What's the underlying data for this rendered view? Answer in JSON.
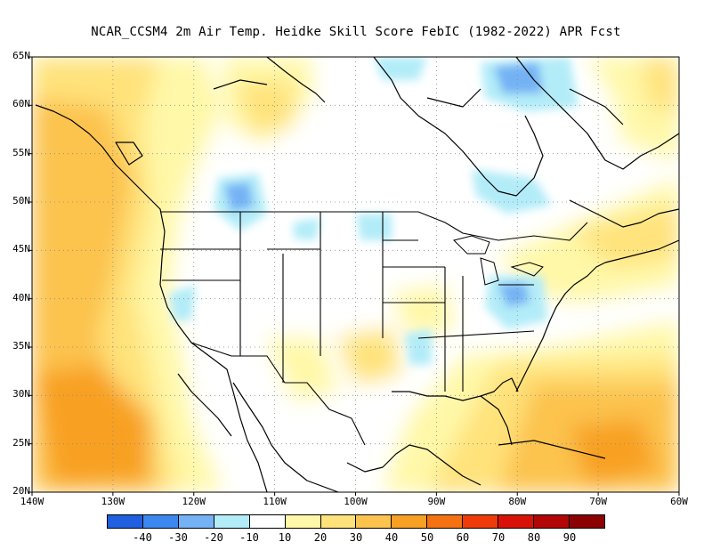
{
  "title": "NCAR_CCSM4  2m Air Temp. Heidke Skill Score FebIC (1982-2022) APR Fcst",
  "lat_labels": [
    {
      "value": 65,
      "label": "65N"
    },
    {
      "value": 60,
      "label": "60N"
    },
    {
      "value": 55,
      "label": "55N"
    },
    {
      "value": 50,
      "label": "50N"
    },
    {
      "value": 45,
      "label": "45N"
    },
    {
      "value": 40,
      "label": "40N"
    },
    {
      "value": 35,
      "label": "35N"
    },
    {
      "value": 30,
      "label": "30N"
    },
    {
      "value": 25,
      "label": "25N"
    },
    {
      "value": 20,
      "label": "20N"
    }
  ],
  "lon_labels": [
    {
      "value": -140,
      "label": "140W"
    },
    {
      "value": -130,
      "label": "130W"
    },
    {
      "value": -120,
      "label": "120W"
    },
    {
      "value": -110,
      "label": "110W"
    },
    {
      "value": -100,
      "label": "100W"
    },
    {
      "value": -90,
      "label": "90W"
    },
    {
      "value": -80,
      "label": "80W"
    },
    {
      "value": -70,
      "label": "70W"
    },
    {
      "value": -60,
      "label": "60W"
    }
  ],
  "colorbar": {
    "colors": [
      "#1f5fe0",
      "#3d87f0",
      "#74b2f5",
      "#b2ecf8",
      "#ffffff",
      "#fff8a8",
      "#ffe27a",
      "#fcc34e",
      "#f8a024",
      "#f57212",
      "#ef3a0a",
      "#d81208",
      "#b30606",
      "#8c0202"
    ],
    "labels": [
      "-40",
      "-30",
      "-20",
      "-10",
      "10",
      "20",
      "30",
      "40",
      "50",
      "60",
      "70",
      "80",
      "90"
    ]
  },
  "map": {
    "lon_range": [
      -140,
      -60
    ],
    "lat_range": [
      20,
      65
    ],
    "grid": "dotted"
  }
}
